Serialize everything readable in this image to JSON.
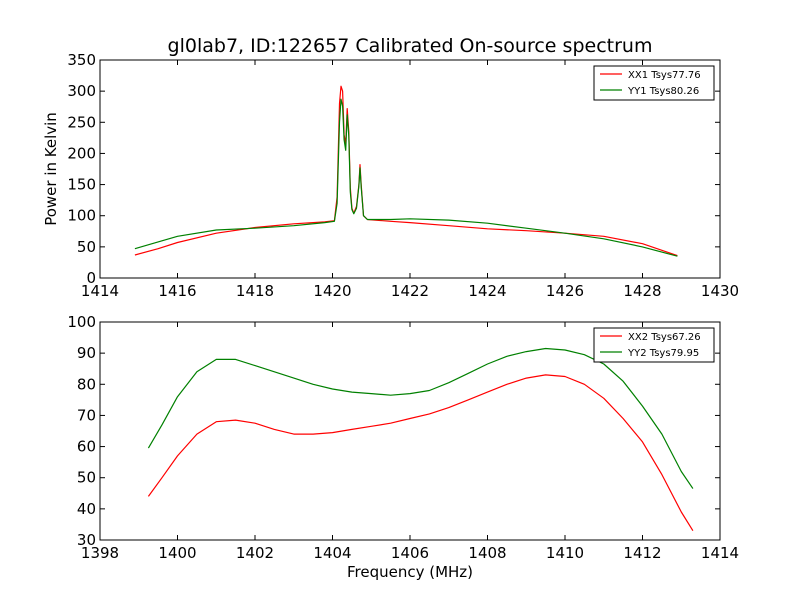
{
  "chart_data": [
    {
      "type": "line",
      "title": "gl0lab7, ID:122657 Calibrated On-source spectrum",
      "xlabel": "",
      "ylabel": "Power in Kelvin",
      "xlim": [
        1414,
        1430
      ],
      "ylim": [
        0,
        350
      ],
      "xticks": [
        "1414",
        "1416",
        "1418",
        "1420",
        "1422",
        "1424",
        "1426",
        "1428",
        "1430"
      ],
      "yticks": [
        "0",
        "50",
        "100",
        "150",
        "200",
        "250",
        "300",
        "350"
      ],
      "legend_position": "top-right",
      "series": [
        {
          "name": "XX1 Tsys77.76",
          "color": "#ff0000",
          "points": [
            [
              1414.9,
              37
            ],
            [
              1415.5,
              47
            ],
            [
              1416,
              57
            ],
            [
              1417,
              72
            ],
            [
              1418,
              81
            ],
            [
              1419,
              87
            ],
            [
              1419.8,
              90
            ],
            [
              1420.05,
              92
            ],
            [
              1420.12,
              130
            ],
            [
              1420.18,
              280
            ],
            [
              1420.22,
              308
            ],
            [
              1420.26,
              300
            ],
            [
              1420.3,
              230
            ],
            [
              1420.34,
              215
            ],
            [
              1420.38,
              272
            ],
            [
              1420.42,
              235
            ],
            [
              1420.46,
              145
            ],
            [
              1420.5,
              112
            ],
            [
              1420.55,
              104
            ],
            [
              1420.62,
              115
            ],
            [
              1420.68,
              150
            ],
            [
              1420.71,
              182
            ],
            [
              1420.74,
              150
            ],
            [
              1420.8,
              100
            ],
            [
              1420.9,
              94
            ],
            [
              1421.5,
              91
            ],
            [
              1422,
              89
            ],
            [
              1423,
              84
            ],
            [
              1424,
              79
            ],
            [
              1425,
              76
            ],
            [
              1426,
              72
            ],
            [
              1427,
              67
            ],
            [
              1428,
              55
            ],
            [
              1428.9,
              36
            ]
          ]
        },
        {
          "name": "YY1 Tsys80.26",
          "color": "#008000",
          "points": [
            [
              1414.9,
              47
            ],
            [
              1415.5,
              58
            ],
            [
              1416,
              67
            ],
            [
              1417,
              77
            ],
            [
              1418,
              80
            ],
            [
              1419,
              84
            ],
            [
              1419.8,
              89
            ],
            [
              1420.05,
              91
            ],
            [
              1420.12,
              120
            ],
            [
              1420.18,
              250
            ],
            [
              1420.22,
              287
            ],
            [
              1420.26,
              276
            ],
            [
              1420.3,
              222
            ],
            [
              1420.34,
              205
            ],
            [
              1420.38,
              262
            ],
            [
              1420.42,
              228
            ],
            [
              1420.46,
              138
            ],
            [
              1420.5,
              110
            ],
            [
              1420.55,
              103
            ],
            [
              1420.62,
              112
            ],
            [
              1420.68,
              148
            ],
            [
              1420.71,
              177
            ],
            [
              1420.74,
              146
            ],
            [
              1420.8,
              100
            ],
            [
              1420.9,
              94
            ],
            [
              1421.5,
              94
            ],
            [
              1422,
              95
            ],
            [
              1423,
              93
            ],
            [
              1424,
              88
            ],
            [
              1425,
              80
            ],
            [
              1426,
              72
            ],
            [
              1427,
              63
            ],
            [
              1428,
              50
            ],
            [
              1428.9,
              35
            ]
          ]
        }
      ]
    },
    {
      "type": "line",
      "title": "",
      "xlabel": "Frequency (MHz)",
      "ylabel": "",
      "xlim": [
        1398,
        1414
      ],
      "ylim": [
        30,
        100
      ],
      "xticks": [
        "1398",
        "1400",
        "1402",
        "1404",
        "1406",
        "1408",
        "1410",
        "1412",
        "1414"
      ],
      "yticks": [
        "30",
        "40",
        "50",
        "60",
        "70",
        "80",
        "90",
        "100"
      ],
      "legend_position": "top-right",
      "series": [
        {
          "name": "XX2 Tsys67.26",
          "color": "#ff0000",
          "points": [
            [
              1399.25,
              44
            ],
            [
              1399.6,
              50
            ],
            [
              1400,
              57
            ],
            [
              1400.5,
              64
            ],
            [
              1401,
              68
            ],
            [
              1401.5,
              68.5
            ],
            [
              1402,
              67.5
            ],
            [
              1402.5,
              65.5
            ],
            [
              1403,
              64
            ],
            [
              1403.5,
              64
            ],
            [
              1404,
              64.5
            ],
            [
              1404.5,
              65.5
            ],
            [
              1405,
              66.5
            ],
            [
              1405.5,
              67.5
            ],
            [
              1406,
              69
            ],
            [
              1406.5,
              70.5
            ],
            [
              1407,
              72.5
            ],
            [
              1407.5,
              75
            ],
            [
              1408,
              77.5
            ],
            [
              1408.5,
              80
            ],
            [
              1409,
              82
            ],
            [
              1409.5,
              83
            ],
            [
              1410,
              82.5
            ],
            [
              1410.5,
              80
            ],
            [
              1411,
              75.5
            ],
            [
              1411.5,
              69
            ],
            [
              1412,
              61.5
            ],
            [
              1412.5,
              51
            ],
            [
              1413,
              39
            ],
            [
              1413.3,
              33
            ]
          ]
        },
        {
          "name": "YY2 Tsys79.95",
          "color": "#008000",
          "points": [
            [
              1399.25,
              59.5
            ],
            [
              1399.6,
              67
            ],
            [
              1400,
              76
            ],
            [
              1400.5,
              84
            ],
            [
              1401,
              88
            ],
            [
              1401.5,
              88
            ],
            [
              1402,
              86
            ],
            [
              1402.5,
              84
            ],
            [
              1403,
              82
            ],
            [
              1403.5,
              80
            ],
            [
              1404,
              78.5
            ],
            [
              1404.5,
              77.5
            ],
            [
              1405,
              77
            ],
            [
              1405.5,
              76.5
            ],
            [
              1406,
              77
            ],
            [
              1406.5,
              78
            ],
            [
              1407,
              80.5
            ],
            [
              1407.5,
              83.5
            ],
            [
              1408,
              86.5
            ],
            [
              1408.5,
              89
            ],
            [
              1409,
              90.5
            ],
            [
              1409.5,
              91.5
            ],
            [
              1410,
              91
            ],
            [
              1410.5,
              89.5
            ],
            [
              1411,
              86.5
            ],
            [
              1411.5,
              81
            ],
            [
              1412,
              73
            ],
            [
              1412.5,
              64
            ],
            [
              1413,
              52
            ],
            [
              1413.3,
              46.5
            ]
          ]
        }
      ]
    }
  ]
}
